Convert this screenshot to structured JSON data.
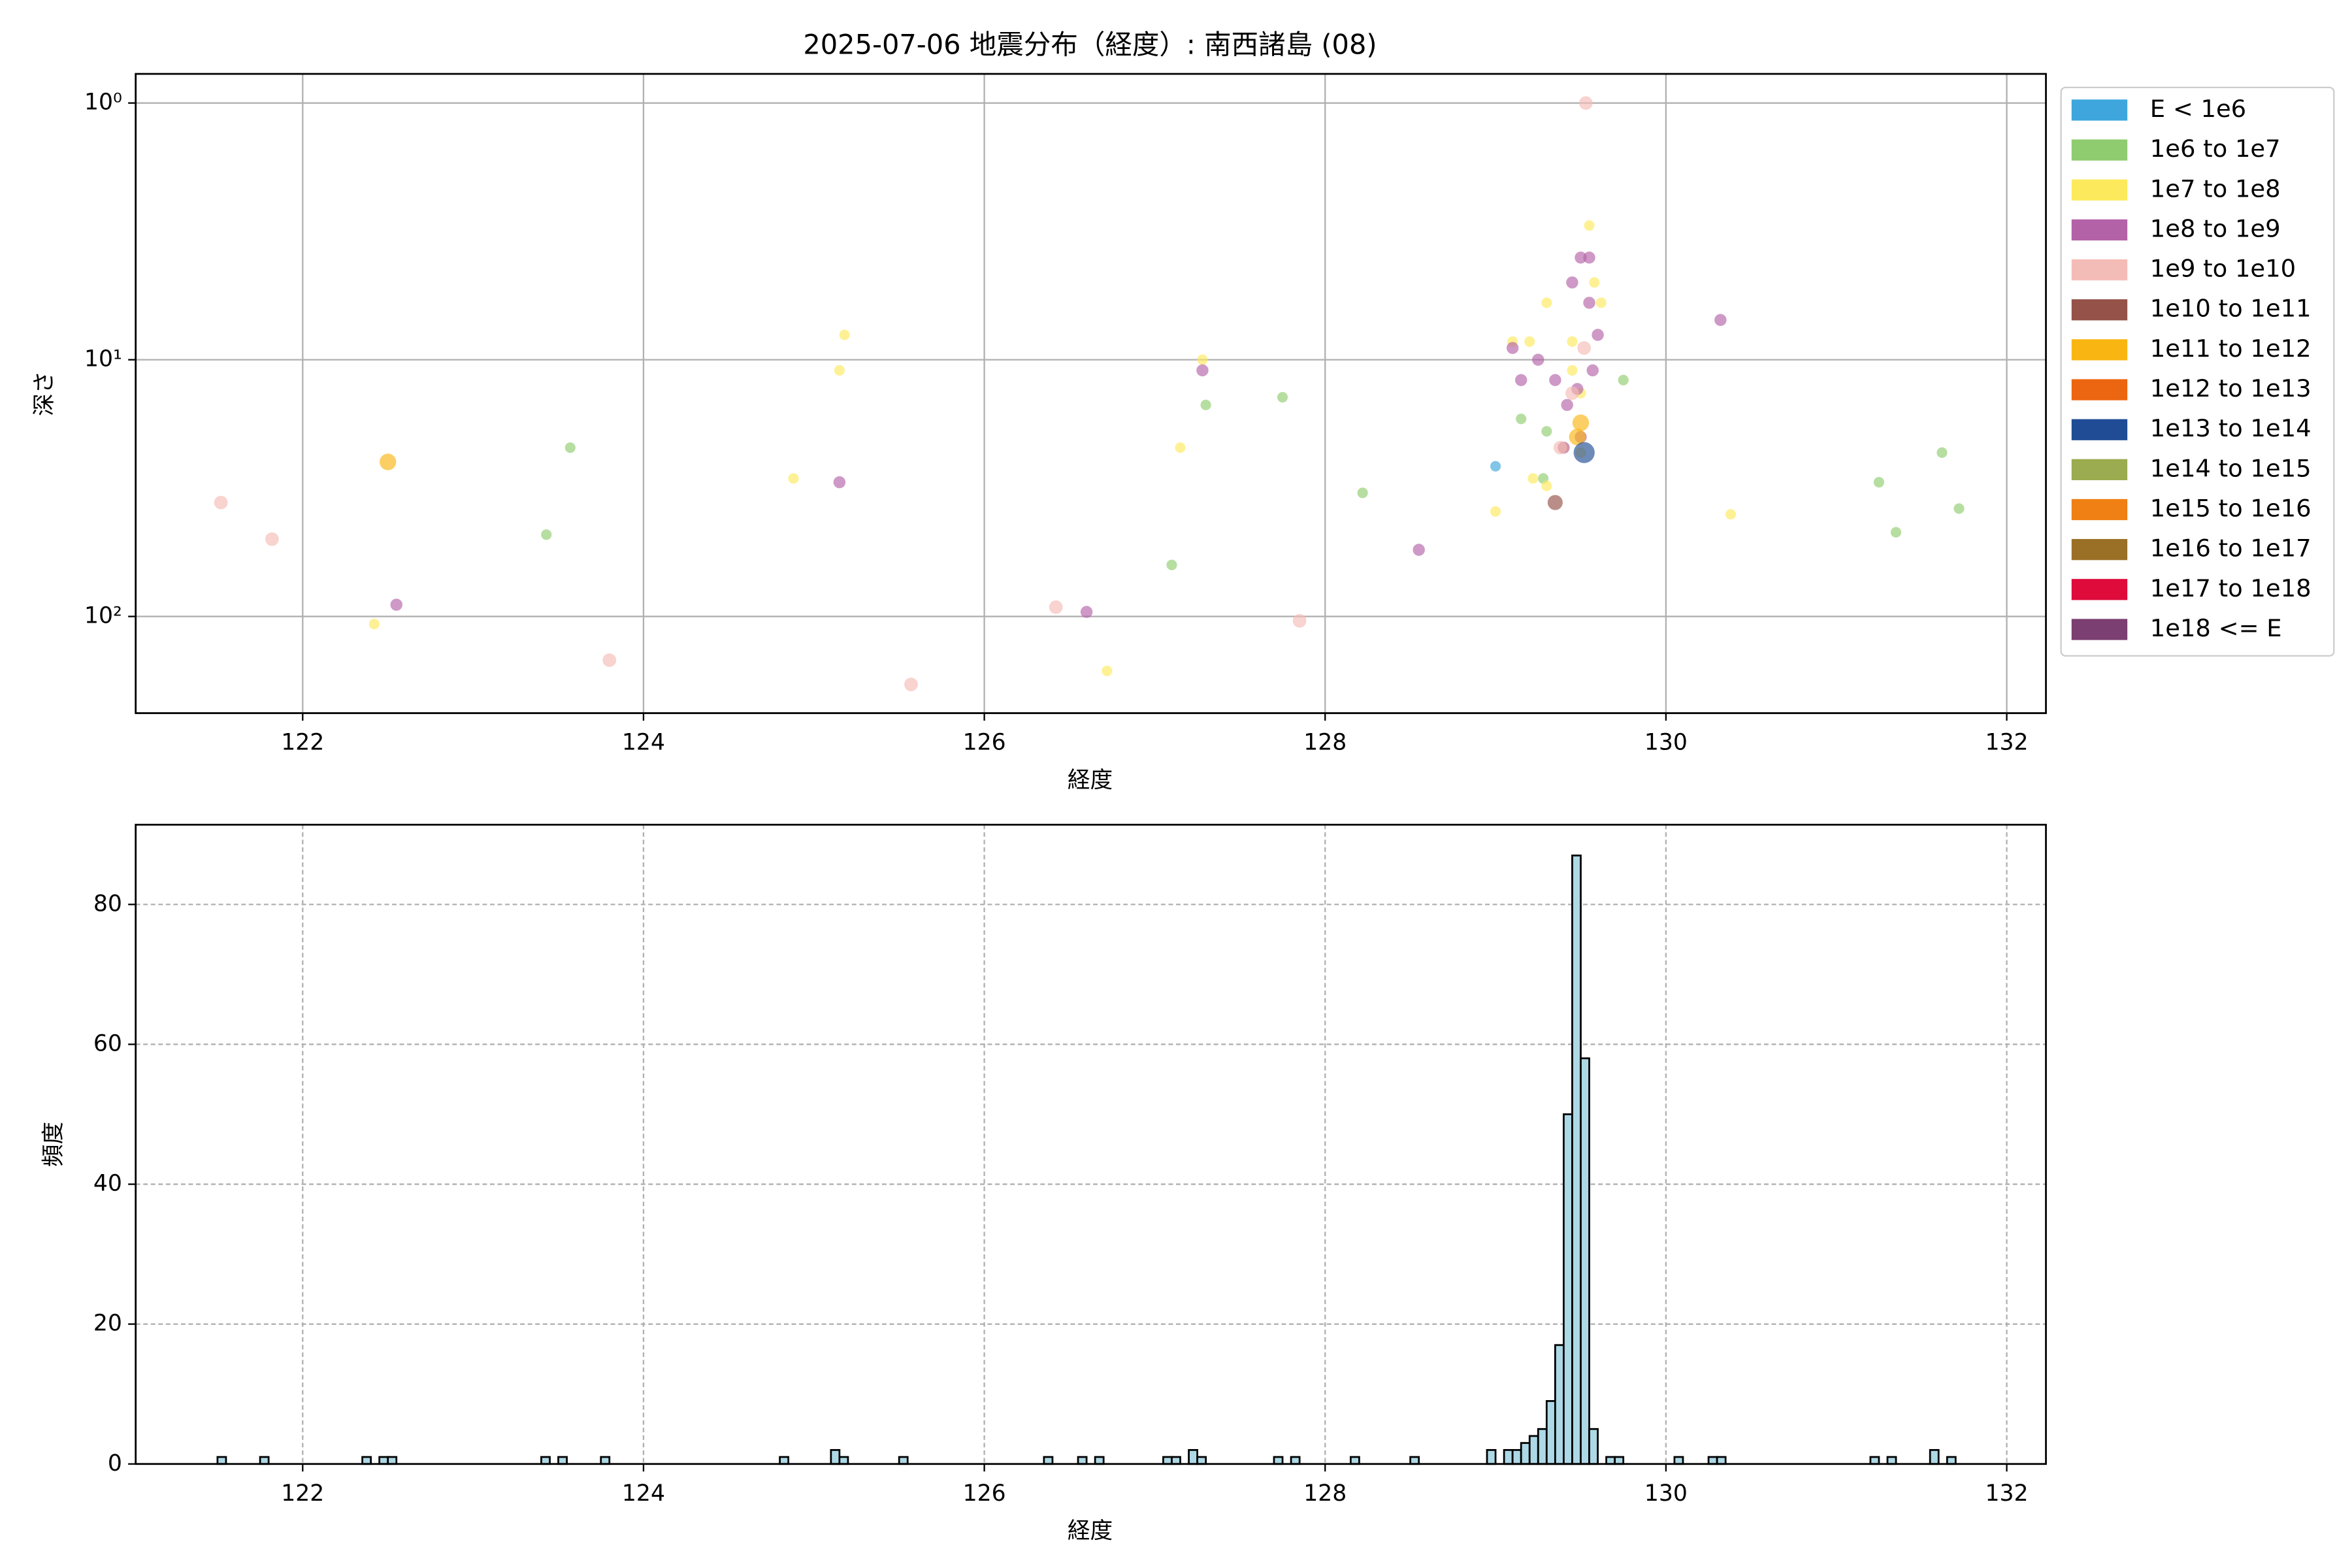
{
  "chart_data": [
    {
      "type": "scatter",
      "title": "2025-07-06 地震分布（経度）: 南西諸島 (08)",
      "x_label": "経度",
      "y_label": "深さ",
      "xlim": [
        121.02,
        132.23
      ],
      "xticks": [
        122,
        124,
        126,
        128,
        130,
        132
      ],
      "ylim": [
        0.77,
        238
      ],
      "log_y": true,
      "y_inverted": true,
      "yticks": [
        {
          "value": 1,
          "label": "10⁰"
        },
        {
          "value": 10,
          "label": "10¹"
        },
        {
          "value": 100,
          "label": "10²"
        }
      ],
      "grid": true,
      "legend": "outside-right",
      "series": [
        {
          "name": "E < 1e6",
          "color": "#3ea6dd",
          "size": 3.5,
          "x": [
            129.0
          ],
          "y": [
            26
          ]
        },
        {
          "name": "1e6 to 1e7",
          "color": "#8fcc6f",
          "size": 3.5,
          "x": [
            123.43,
            123.57,
            127.1,
            127.3,
            127.75,
            128.22,
            129.15,
            129.3,
            129.28,
            129.75,
            131.25,
            131.35,
            131.62,
            131.72
          ],
          "y": [
            48,
            22,
            63,
            15,
            14,
            33,
            17,
            19,
            29,
            12,
            30,
            47,
            23,
            38
          ]
        },
        {
          "name": "1e7 to 1e8",
          "color": "#fdea5c",
          "size": 3.5,
          "x": [
            122.42,
            124.88,
            125.15,
            125.18,
            126.72,
            127.15,
            127.28,
            129.0,
            129.1,
            129.2,
            129.3,
            129.22,
            129.3,
            129.45,
            129.5,
            129.55,
            129.58,
            130.38,
            129.62,
            129.4,
            129.5,
            129.45
          ],
          "y": [
            107,
            29,
            11,
            8,
            163,
            22,
            10,
            39,
            8.5,
            8.5,
            6,
            29,
            31,
            8.5,
            13.5,
            3,
            5,
            40,
            6,
            22,
            23,
            11
          ]
        },
        {
          "name": "1e8 to 1e9",
          "color": "#b462a8",
          "size": 4,
          "x": [
            122.55,
            125.15,
            126.6,
            127.28,
            128.55,
            129.1,
            129.15,
            129.25,
            129.35,
            129.45,
            129.5,
            129.55,
            129.6,
            129.57,
            129.42,
            129.5,
            129.4,
            130.32,
            129.48,
            129.55
          ],
          "y": [
            90,
            30,
            96,
            11,
            55,
            9,
            12,
            10,
            12,
            5,
            4,
            4,
            8,
            11,
            15,
            20,
            22,
            7,
            13,
            6
          ]
        },
        {
          "name": "1e9 to 1e10",
          "color": "#f4bcb6",
          "size": 4.5,
          "x": [
            121.52,
            121.82,
            123.8,
            125.57,
            126.42,
            127.85,
            129.53,
            129.38,
            129.45,
            129.52
          ],
          "y": [
            36,
            50,
            148,
            184,
            92,
            104,
            1.0,
            22,
            13.5,
            9
          ]
        },
        {
          "name": "1e10 to 1e11",
          "color": "#955248",
          "size": 5,
          "x": [
            129.35
          ],
          "y": [
            36
          ]
        },
        {
          "name": "1e11 to 1e12",
          "color": "#f9b612",
          "size": 5.5,
          "x": [
            122.5,
            129.5,
            129.48
          ],
          "y": [
            25,
            17.6,
            20
          ]
        },
        {
          "name": "1e12 to 1e13",
          "color": "#ec6510",
          "size": 6,
          "x": [],
          "y": []
        },
        {
          "name": "1e13 to 1e14",
          "color": "#1f4c94",
          "size": 7,
          "x": [
            129.52
          ],
          "y": [
            23
          ]
        },
        {
          "name": "1e14 to 1e15",
          "color": "#9aac4f",
          "size": 7,
          "x": [],
          "y": []
        },
        {
          "name": "1e15 to 1e16",
          "color": "#f07f14",
          "size": 7,
          "x": [],
          "y": []
        },
        {
          "name": "1e16 to 1e17",
          "color": "#9a7027",
          "size": 7,
          "x": [],
          "y": []
        },
        {
          "name": "1e17 to 1e18",
          "color": "#de0b3b",
          "size": 7,
          "x": [],
          "y": []
        },
        {
          "name": "1e18 <= E",
          "color": "#7b3f71",
          "size": 7,
          "x": [],
          "y": []
        }
      ]
    },
    {
      "type": "histogram",
      "x_label": "経度",
      "y_label": "頻度",
      "color": "#add8e6",
      "edge_color": "#000000",
      "xlim": [
        121.02,
        132.23
      ],
      "xticks": [
        122,
        124,
        126,
        128,
        130,
        132
      ],
      "ylim": [
        0,
        91.4
      ],
      "yticks": [
        0,
        20,
        40,
        60,
        80
      ],
      "grid": true,
      "bins": [
        121.5,
        121.55,
        121.6,
        121.65,
        121.7,
        121.75,
        121.8,
        121.85,
        121.9,
        121.95,
        122,
        122.05,
        122.1,
        122.15,
        122.2,
        122.25,
        122.3,
        122.35,
        122.4,
        122.45,
        122.5,
        122.55,
        122.6,
        122.65,
        122.7,
        122.75,
        122.8,
        122.85,
        122.9,
        122.95,
        123,
        123.05,
        123.1,
        123.15,
        123.2,
        123.25,
        123.3,
        123.35,
        123.4,
        123.45,
        123.5,
        123.55,
        123.6,
        123.65,
        123.7,
        123.75,
        123.8,
        123.85,
        123.9,
        123.95,
        124,
        124.05,
        124.1,
        124.15,
        124.2,
        124.25,
        124.3,
        124.35,
        124.4,
        124.45,
        124.5,
        124.55,
        124.6,
        124.65,
        124.7,
        124.75,
        124.8,
        124.85,
        124.9,
        124.95,
        125,
        125.05,
        125.1,
        125.15,
        125.2,
        125.25,
        125.3,
        125.35,
        125.4,
        125.45,
        125.5,
        125.55,
        125.6,
        125.65,
        125.7,
        125.75,
        125.8,
        125.85,
        125.9,
        125.95,
        126,
        126.05,
        126.1,
        126.15,
        126.2,
        126.25,
        126.3,
        126.35,
        126.4,
        126.45,
        126.5,
        126.55,
        126.6,
        126.65,
        126.7,
        126.75,
        126.8,
        126.85,
        126.9,
        126.95,
        127,
        127.05,
        127.1,
        127.15,
        127.2,
        127.25,
        127.3,
        127.35,
        127.4,
        127.45,
        127.5,
        127.55,
        127.6,
        127.65,
        127.7,
        127.75,
        127.8,
        127.85,
        127.9,
        127.95,
        128,
        128.05,
        128.1,
        128.15,
        128.2,
        128.25,
        128.3,
        128.35,
        128.4,
        128.45,
        128.5,
        128.55,
        128.6,
        128.65,
        128.7,
        128.75,
        128.8,
        128.85,
        128.9,
        128.95,
        129,
        129.05,
        129.1,
        129.15,
        129.2,
        129.25,
        129.3,
        129.35,
        129.4,
        129.45,
        129.5,
        129.55,
        129.6,
        129.65,
        129.7,
        129.75,
        129.8,
        129.85,
        129.9,
        129.95,
        130,
        130.05,
        130.1,
        130.15,
        130.2,
        130.25,
        130.3,
        130.35,
        130.4,
        130.45,
        130.5,
        130.55,
        130.6,
        130.65,
        130.7,
        130.75,
        130.8,
        130.85,
        130.9,
        130.95,
        131,
        131.05,
        131.1,
        131.15,
        131.2,
        131.25,
        131.3,
        131.35,
        131.4,
        131.45,
        131.5,
        131.55,
        131.6,
        131.65,
        131.7,
        131.75
      ],
      "values": [
        1,
        0,
        0,
        0,
        0,
        1,
        0,
        0,
        0,
        0,
        0,
        0,
        0,
        0,
        0,
        0,
        0,
        1,
        0,
        1,
        1,
        0,
        0,
        0,
        0,
        0,
        0,
        0,
        0,
        0,
        0,
        0,
        0,
        0,
        0,
        0,
        0,
        0,
        1,
        0,
        1,
        0,
        0,
        0,
        0,
        1,
        0,
        0,
        0,
        0,
        0,
        0,
        0,
        0,
        0,
        0,
        0,
        0,
        0,
        0,
        0,
        0,
        0,
        0,
        0,
        0,
        1,
        0,
        0,
        0,
        0,
        0,
        2,
        1,
        0,
        0,
        0,
        0,
        0,
        0,
        1,
        0,
        0,
        0,
        0,
        0,
        0,
        0,
        0,
        0,
        0,
        0,
        0,
        0,
        0,
        0,
        0,
        1,
        0,
        0,
        0,
        1,
        0,
        1,
        0,
        0,
        0,
        0,
        0,
        0,
        0,
        1,
        1,
        0,
        2,
        1,
        0,
        0,
        0,
        0,
        0,
        0,
        0,
        0,
        1,
        0,
        1,
        0,
        0,
        0,
        0,
        0,
        0,
        1,
        0,
        0,
        0,
        0,
        0,
        0,
        1,
        0,
        0,
        0,
        0,
        0,
        0,
        0,
        0,
        2,
        0,
        2,
        2,
        3,
        4,
        5,
        9,
        17,
        50,
        87,
        58,
        5,
        0,
        1,
        1,
        0,
        0,
        0,
        0,
        0,
        0,
        1,
        0,
        0,
        0,
        1,
        1,
        0,
        0,
        0,
        0,
        0,
        0,
        0,
        0,
        0,
        0,
        0,
        0,
        0,
        0,
        0,
        0,
        0,
        1,
        0,
        1,
        0,
        0,
        0,
        0,
        2,
        0,
        1,
        0
      ]
    }
  ]
}
